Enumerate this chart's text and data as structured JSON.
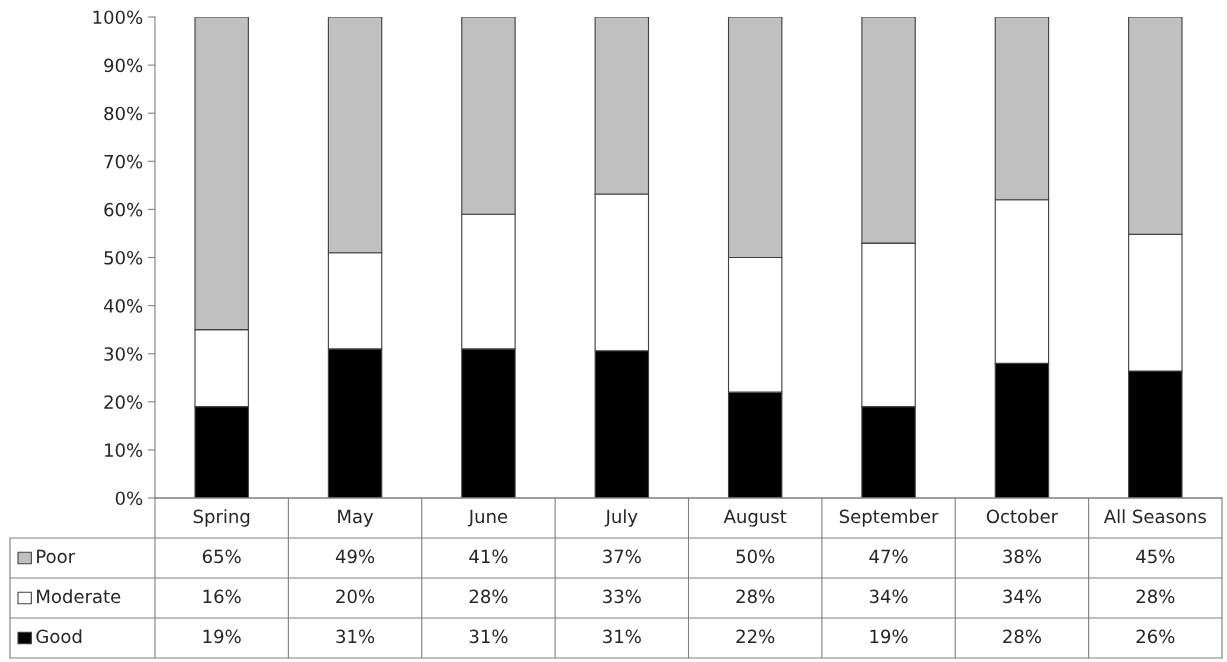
{
  "chart_data": {
    "type": "bar",
    "stacked": true,
    "categories": [
      "Spring",
      "May",
      "June",
      "July",
      "August",
      "September",
      "October",
      "All Seasons"
    ],
    "series": [
      {
        "name": "Good",
        "color": "#000000",
        "values": [
          19,
          31,
          31,
          30.6,
          22,
          19,
          28,
          26.4
        ],
        "value_labels": [
          "19%",
          "31%",
          "31%",
          "31%",
          "22%",
          "19%",
          "28%",
          "26%"
        ]
      },
      {
        "name": "Moderate",
        "color": "#ffffff",
        "values": [
          16,
          20,
          28,
          32.6,
          28,
          34,
          34,
          28.4
        ],
        "value_labels": [
          "16%",
          "20%",
          "28%",
          "33%",
          "28%",
          "34%",
          "34%",
          "28%"
        ]
      },
      {
        "name": "Poor",
        "color": "#c0c0c0",
        "values": [
          65,
          49,
          41,
          36.8,
          50,
          47,
          38,
          45.2
        ],
        "value_labels": [
          "65%",
          "49%",
          "41%",
          "37%",
          "50%",
          "47%",
          "38%",
          "45%"
        ]
      }
    ],
    "ylim": [
      0,
      100
    ],
    "yticks": [
      {
        "value": 0,
        "label": "0%"
      },
      {
        "value": 10,
        "label": "10%"
      },
      {
        "value": 20,
        "label": "20%"
      },
      {
        "value": 30,
        "label": "30%"
      },
      {
        "value": 40,
        "label": "40%"
      },
      {
        "value": 50,
        "label": "50%"
      },
      {
        "value": 60,
        "label": "60%"
      },
      {
        "value": 70,
        "label": "70%"
      },
      {
        "value": 80,
        "label": "80%"
      },
      {
        "value": 90,
        "label": "90%"
      },
      {
        "value": 100,
        "label": "100%"
      }
    ],
    "grid": false,
    "legend": "bottom"
  }
}
